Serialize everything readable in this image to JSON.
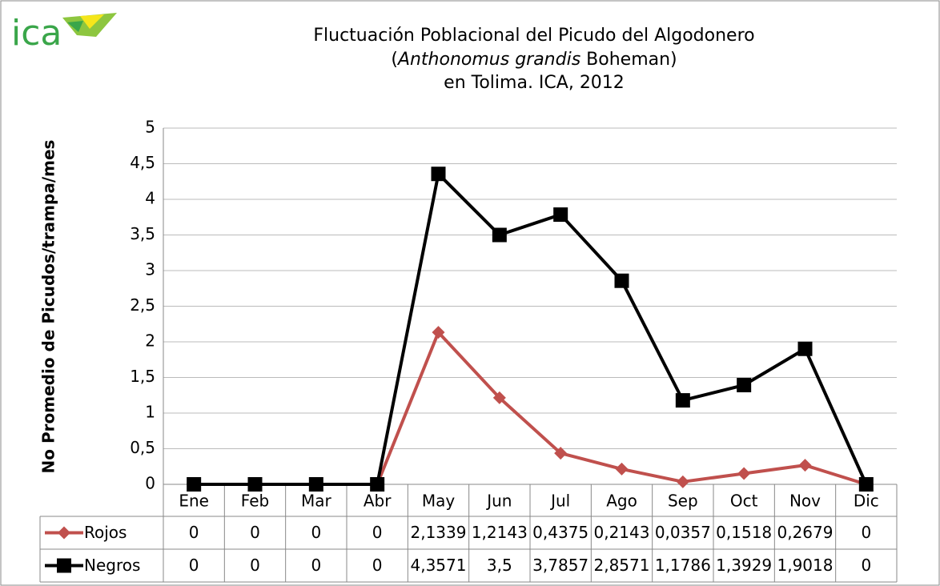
{
  "logo": "ica",
  "chart_data": {
    "type": "line",
    "title": [
      "Fluctuación Poblacional del Picudo del Algodonero",
      [
        "(",
        "Anthonomus grandis",
        " Boheman)"
      ],
      "en Tolima. ICA, 2012"
    ],
    "y_label": "No Promedio de Picudos/trampa/mes",
    "categories": [
      "Ene",
      "Feb",
      "Mar",
      "Abr",
      "May",
      "Jun",
      "Jul",
      "Ago",
      "Sep",
      "Oct",
      "Nov",
      "Dic"
    ],
    "series": [
      {
        "name": "Rojos",
        "color": "#c0504d",
        "marker": "diamond",
        "values": [
          0,
          0,
          0,
          0,
          2.1339,
          1.2143,
          0.4375,
          0.2143,
          0.0357,
          0.1518,
          0.2679,
          0
        ],
        "value_labels": [
          "0",
          "0",
          "0",
          "0",
          "2,1339",
          "1,2143",
          "0,4375",
          "0,2143",
          "0,0357",
          "0,1518",
          "0,2679",
          "0"
        ]
      },
      {
        "name": "Negros",
        "color": "#000000",
        "marker": "square",
        "values": [
          0,
          0,
          0,
          0,
          4.3571,
          3.5,
          3.7857,
          2.8571,
          1.1786,
          1.3929,
          1.9018,
          0
        ],
        "value_labels": [
          "0",
          "0",
          "0",
          "0",
          "4,3571",
          "3,5",
          "3,7857",
          "2,8571",
          "1,1786",
          "1,3929",
          "1,9018",
          "0"
        ]
      }
    ],
    "ylim": [
      0,
      5
    ],
    "yticks": [
      0,
      {
        "value": 0.5,
        "label": "0,5"
      },
      1,
      {
        "value": 1.5,
        "label": "1,5"
      },
      2,
      {
        "value": 2.5,
        "label": "2,5"
      },
      3,
      {
        "value": 3.5,
        "label": "3,5"
      },
      4,
      {
        "value": 4.5,
        "label": "4,5"
      },
      5
    ],
    "grid": true
  }
}
